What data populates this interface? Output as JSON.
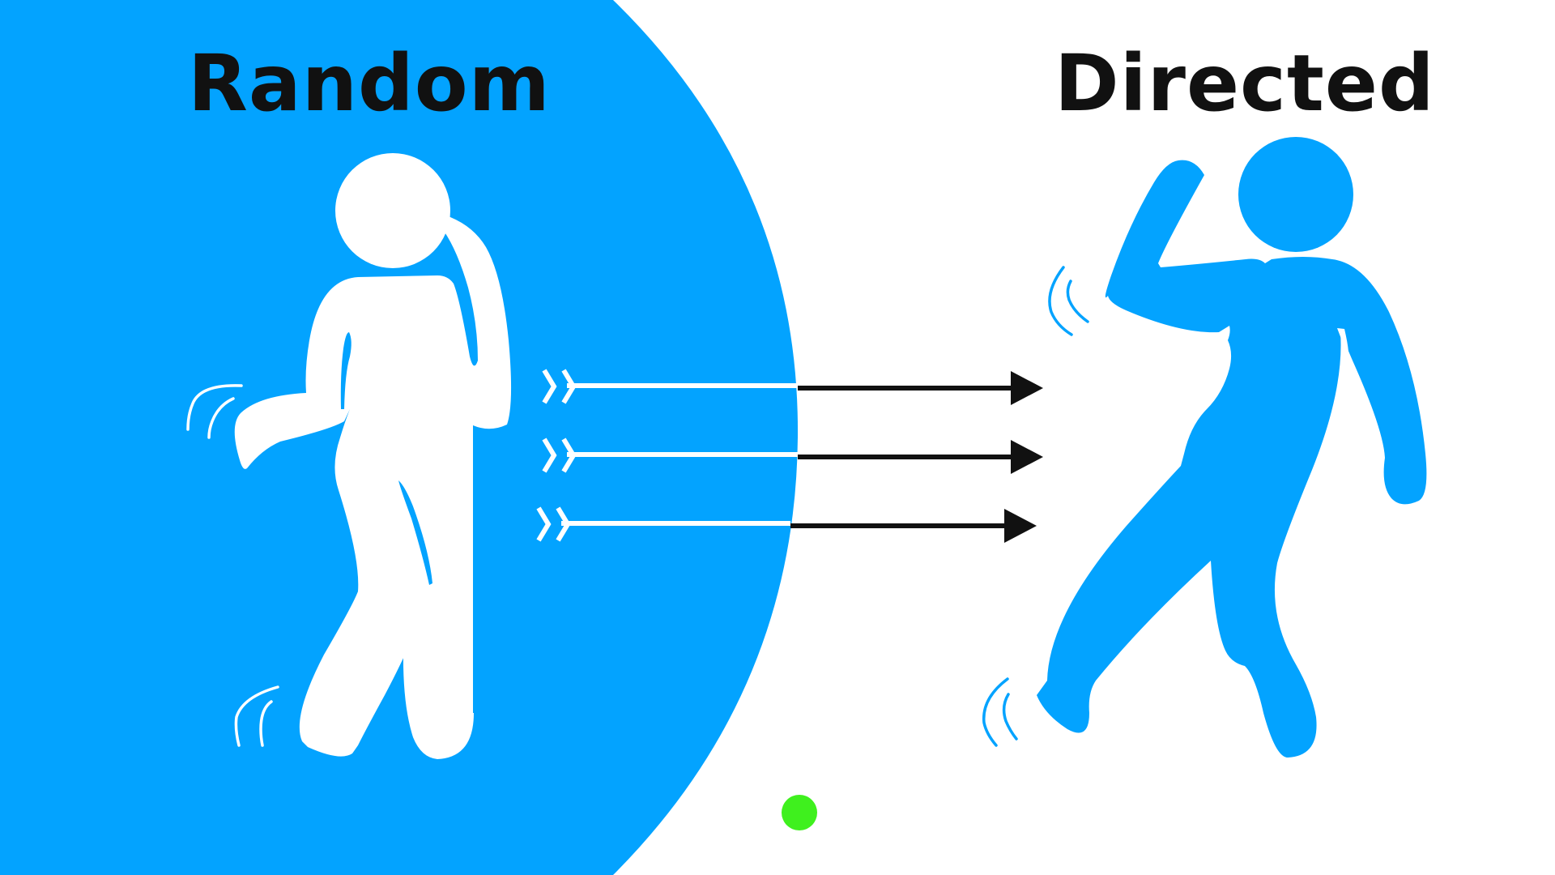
{
  "titles": {
    "left": "Random",
    "right": "Directed"
  },
  "colors": {
    "accent_blue": "#03a3ff",
    "background": "#ffffff",
    "arrow_dark": "#111111",
    "arrow_light": "#ffffff",
    "dot_green": "#3ff01e",
    "text": "#111111"
  },
  "icons": {
    "left_figure": "wobbly-walking-person-icon",
    "right_figure": "striding-person-icon",
    "arrows": "arrow-icon",
    "marker": "green-dot-icon"
  },
  "arrows": {
    "count": 3
  }
}
